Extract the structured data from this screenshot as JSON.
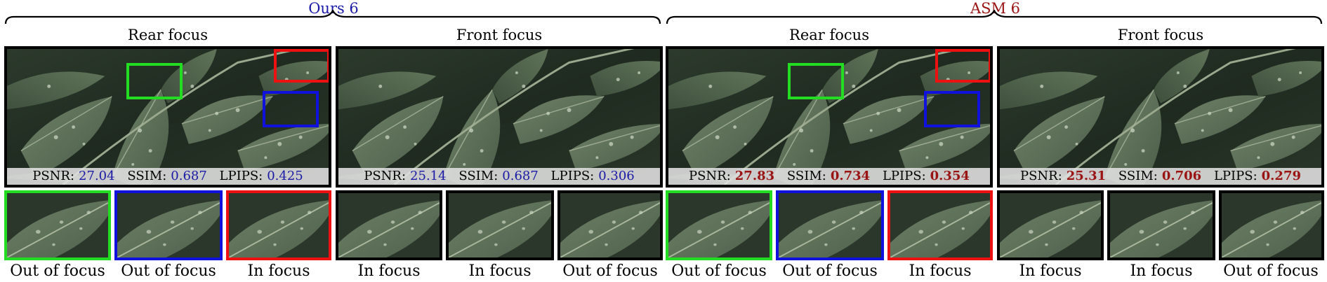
{
  "groups": [
    {
      "title": "Ours 6",
      "color": "#1a1aa6"
    },
    {
      "title": "ASM 6",
      "color": "#9a1414"
    }
  ],
  "panels": [
    {
      "title": "Rear focus",
      "group": 0,
      "highlighted": true,
      "metrics": {
        "psnr_label": "PSNR:",
        "psnr": "27.04",
        "ssim_label": "SSIM:",
        "ssim": "0.687",
        "lpips_label": "LPIPS:",
        "lpips": "0.425"
      },
      "crops": [
        {
          "caption": "Out of focus",
          "border": "#22dd22"
        },
        {
          "caption": "Out of focus",
          "border": "#1111dd"
        },
        {
          "caption": "In focus",
          "border": "#ee1111"
        }
      ]
    },
    {
      "title": "Front focus",
      "group": 0,
      "highlighted": false,
      "metrics": {
        "psnr_label": "PSNR:",
        "psnr": "25.14",
        "ssim_label": "SSIM:",
        "ssim": "0.687",
        "lpips_label": "LPIPS:",
        "lpips": "0.306"
      },
      "crops": [
        {
          "caption": "In focus",
          "border": "#000000"
        },
        {
          "caption": "In focus",
          "border": "#000000"
        },
        {
          "caption": "Out of focus",
          "border": "#000000"
        }
      ]
    },
    {
      "title": "Rear focus",
      "group": 1,
      "highlighted": true,
      "metrics": {
        "psnr_label": "PSNR:",
        "psnr": "27.83",
        "ssim_label": "SSIM:",
        "ssim": "0.734",
        "lpips_label": "LPIPS:",
        "lpips": "0.354"
      },
      "crops": [
        {
          "caption": "Out of focus",
          "border": "#22dd22"
        },
        {
          "caption": "Out of focus",
          "border": "#1111dd"
        },
        {
          "caption": "In focus",
          "border": "#ee1111"
        }
      ]
    },
    {
      "title": "Front focus",
      "group": 1,
      "highlighted": false,
      "metrics": {
        "psnr_label": "PSNR:",
        "psnr": "25.31",
        "ssim_label": "SSIM:",
        "ssim": "0.706",
        "lpips_label": "LPIPS:",
        "lpips": "0.279"
      },
      "crops": [
        {
          "caption": "In focus",
          "border": "#000000"
        },
        {
          "caption": "In focus",
          "border": "#000000"
        },
        {
          "caption": "Out of focus",
          "border": "#000000"
        }
      ]
    }
  ],
  "highlight_colors": {
    "green": "#22dd22",
    "blue": "#1111dd",
    "red": "#ee1111"
  }
}
